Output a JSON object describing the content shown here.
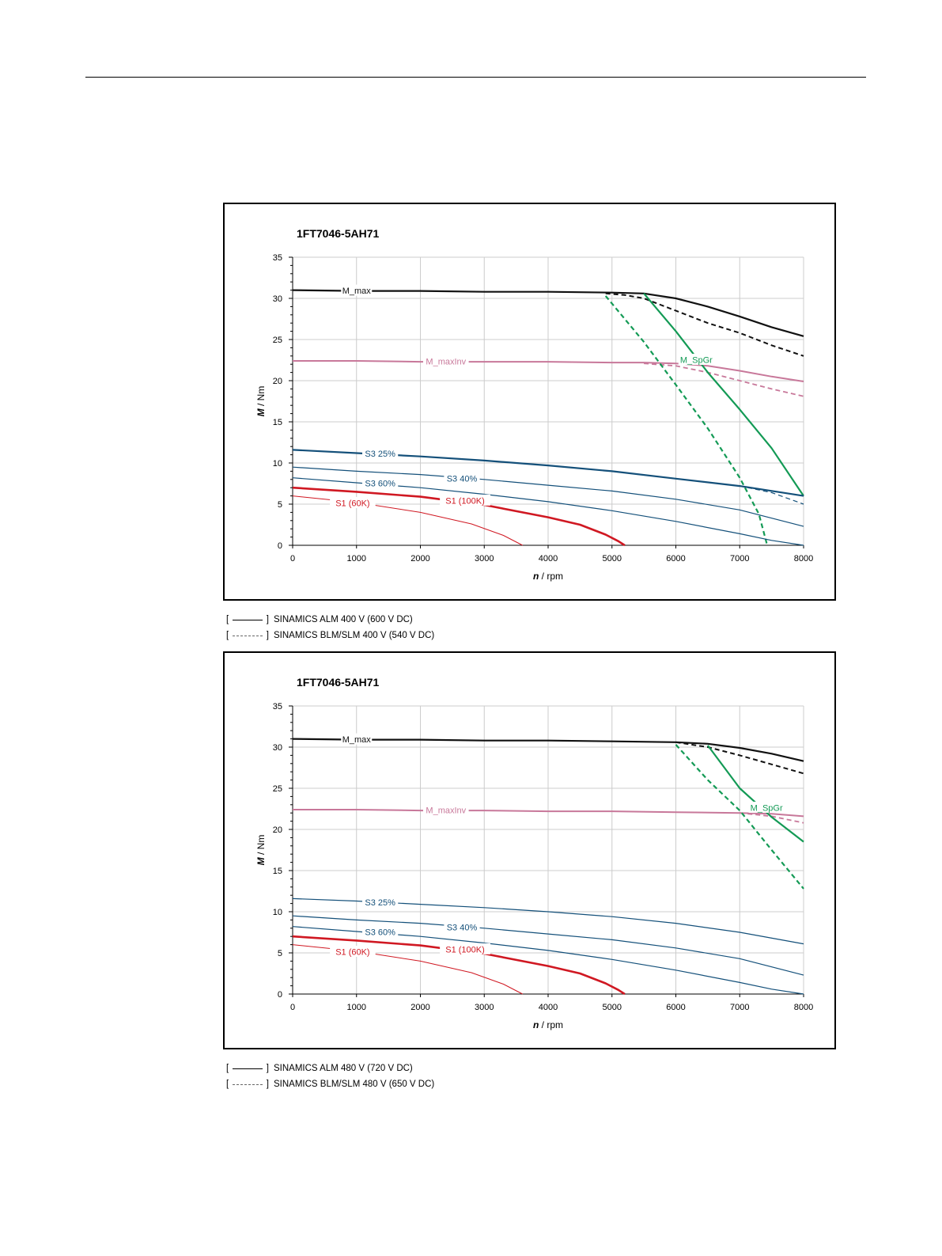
{
  "legends": [
    {
      "solid": "SINAMICS ALM 400 V (600 V DC)",
      "dashed": "SINAMICS BLM/SLM 400 V (540 V DC)"
    },
    {
      "solid": "SINAMICS ALM 480 V (720 V DC)",
      "dashed": "SINAMICS BLM/SLM 480 V (650 V DC)"
    }
  ],
  "colors": {
    "black": "#111111",
    "pink": "#c8789a",
    "green": "#139a55",
    "blue": "#14507a",
    "red": "#d01822",
    "grid": "#cccccc"
  },
  "chart_data": [
    {
      "type": "line",
      "title": "1FT7046-5AH71",
      "xlabel_italic": "n",
      "xlabel": " / rpm",
      "ylabel_italic": "M",
      "ylabel": " / Nm",
      "xlim": [
        0,
        8000
      ],
      "ylim": [
        0,
        35
      ],
      "xticks": [
        0,
        1000,
        2000,
        3000,
        4000,
        5000,
        6000,
        7000,
        8000
      ],
      "yticks": [
        0,
        5,
        10,
        15,
        20,
        25,
        30,
        35
      ],
      "grid": true,
      "series": [
        {
          "name": "M_max",
          "color": "black",
          "dash": false,
          "width": 2.2,
          "x": [
            0,
            1000,
            2000,
            3000,
            4000,
            5000,
            5500,
            6000,
            6500,
            7000,
            7500,
            8000
          ],
          "y": [
            31.0,
            30.9,
            30.9,
            30.8,
            30.8,
            30.7,
            30.6,
            30.0,
            29.0,
            27.8,
            26.5,
            25.4
          ]
        },
        {
          "color": "black",
          "dash": true,
          "width": 2.0,
          "x": [
            4900,
            5200,
            5500,
            6000,
            6500,
            7000,
            7500,
            8000
          ],
          "y": [
            30.6,
            30.4,
            30.0,
            28.5,
            27.0,
            25.8,
            24.3,
            23.0
          ]
        },
        {
          "name": "M_maxInv",
          "color": "pink",
          "dash": false,
          "width": 2.0,
          "x": [
            0,
            1000,
            2000,
            3000,
            4000,
            5000,
            5500,
            6000,
            6500,
            7000,
            7500,
            8000
          ],
          "y": [
            22.4,
            22.4,
            22.3,
            22.3,
            22.3,
            22.2,
            22.2,
            22.1,
            21.8,
            21.2,
            20.5,
            19.9
          ]
        },
        {
          "color": "pink",
          "dash": true,
          "width": 1.8,
          "x": [
            5500,
            6000,
            6500,
            7000,
            7500,
            8000
          ],
          "y": [
            22.1,
            21.8,
            21.0,
            20.0,
            19.0,
            18.1
          ]
        },
        {
          "name": "M_SpGr",
          "color": "green",
          "dash": false,
          "width": 2.2,
          "x": [
            5500,
            6000,
            6500,
            7000,
            7500,
            8000
          ],
          "y": [
            30.6,
            26.0,
            21.0,
            16.5,
            11.8,
            6.0
          ]
        },
        {
          "color": "green",
          "dash": true,
          "width": 2.2,
          "x": [
            4900,
            5500,
            6000,
            6500,
            7000,
            7300,
            7430
          ],
          "y": [
            30.3,
            24.7,
            19.5,
            14.2,
            8.2,
            3.8,
            0.0
          ]
        },
        {
          "name": "S3 25%",
          "color": "blue",
          "dash": false,
          "width": 2.2,
          "x": [
            0,
            1000,
            2000,
            3000,
            4000,
            5000,
            6000,
            7000,
            8000
          ],
          "y": [
            11.6,
            11.2,
            10.8,
            10.3,
            9.7,
            9.0,
            8.1,
            7.2,
            6.0
          ]
        },
        {
          "color": "blue",
          "dash": true,
          "width": 1.2,
          "x": [
            7000,
            7500,
            8000
          ],
          "y": [
            7.2,
            6.4,
            5.0
          ]
        },
        {
          "name": "S3 40%",
          "color": "blue",
          "dash": false,
          "width": 1.2,
          "x": [
            0,
            1000,
            2000,
            3000,
            4000,
            5000,
            6000,
            7000,
            8000
          ],
          "y": [
            9.5,
            9.0,
            8.6,
            8.0,
            7.3,
            6.6,
            5.6,
            4.3,
            2.3
          ]
        },
        {
          "name": "S3 60%",
          "color": "blue",
          "dash": false,
          "width": 1.2,
          "x": [
            0,
            1000,
            2000,
            3000,
            4000,
            5000,
            6000,
            7000,
            7500,
            8000
          ],
          "y": [
            8.2,
            7.6,
            7.0,
            6.2,
            5.3,
            4.2,
            2.9,
            1.4,
            0.6,
            0.0
          ]
        },
        {
          "name": "S1 (100K)",
          "color": "red",
          "dash": false,
          "width": 2.6,
          "x": [
            0,
            1000,
            2000,
            3000,
            4000,
            4500,
            4900,
            5100,
            5200
          ],
          "y": [
            7.0,
            6.5,
            5.9,
            4.9,
            3.4,
            2.5,
            1.3,
            0.5,
            0.0
          ]
        },
        {
          "name": "S1 (60K)",
          "color": "red",
          "dash": false,
          "width": 1.0,
          "x": [
            0,
            1000,
            2000,
            2800,
            3300,
            3600
          ],
          "y": [
            6.0,
            5.2,
            4.0,
            2.6,
            1.2,
            0.0
          ]
        }
      ],
      "annotations": [
        {
          "text": "M_max",
          "x": 1000,
          "y": 30.9,
          "color": "black"
        },
        {
          "text": "M_maxInv",
          "x": 2400,
          "y": 22.3,
          "color": "pink"
        },
        {
          "text": "M_SpGr",
          "x": 6320,
          "y": 22.5,
          "color": "green"
        },
        {
          "text": "S3 25%",
          "x": 1370,
          "y": 11.1,
          "color": "blue"
        },
        {
          "text": "S3 40%",
          "x": 2650,
          "y": 8.1,
          "color": "blue"
        },
        {
          "text": "S3 60%",
          "x": 1370,
          "y": 7.5,
          "color": "blue"
        },
        {
          "text": "S1 (60K)",
          "x": 940,
          "y": 5.1,
          "color": "red"
        },
        {
          "text": "S1 (100K)",
          "x": 2700,
          "y": 5.4,
          "color": "red"
        }
      ]
    },
    {
      "type": "line",
      "title": "1FT7046-5AH71",
      "xlabel_italic": "n",
      "xlabel": " / rpm",
      "ylabel_italic": "M",
      "ylabel": " / Nm",
      "xlim": [
        0,
        8000
      ],
      "ylim": [
        0,
        35
      ],
      "xticks": [
        0,
        1000,
        2000,
        3000,
        4000,
        5000,
        6000,
        7000,
        8000
      ],
      "yticks": [
        0,
        5,
        10,
        15,
        20,
        25,
        30,
        35
      ],
      "grid": true,
      "series": [
        {
          "name": "M_max",
          "color": "black",
          "dash": false,
          "width": 2.2,
          "x": [
            0,
            1000,
            2000,
            3000,
            4000,
            5000,
            6000,
            6500,
            7000,
            7500,
            8000
          ],
          "y": [
            31.0,
            30.9,
            30.9,
            30.8,
            30.8,
            30.7,
            30.6,
            30.4,
            29.9,
            29.2,
            28.3
          ]
        },
        {
          "color": "black",
          "dash": true,
          "width": 2.0,
          "x": [
            6000,
            6500,
            7000,
            7500,
            8000
          ],
          "y": [
            30.6,
            30.0,
            29.0,
            27.9,
            26.8
          ]
        },
        {
          "name": "M_maxInv",
          "color": "pink",
          "dash": false,
          "width": 2.0,
          "x": [
            0,
            1000,
            2000,
            3000,
            4000,
            5000,
            6000,
            7000,
            7500,
            8000
          ],
          "y": [
            22.4,
            22.4,
            22.3,
            22.3,
            22.2,
            22.2,
            22.1,
            22.0,
            21.9,
            21.6
          ]
        },
        {
          "color": "pink",
          "dash": true,
          "width": 1.8,
          "x": [
            7000,
            7500,
            8000
          ],
          "y": [
            22.0,
            21.6,
            20.8
          ]
        },
        {
          "name": "M_SpGr",
          "color": "green",
          "dash": false,
          "width": 2.2,
          "x": [
            6500,
            7000,
            7500,
            8000
          ],
          "y": [
            30.2,
            25.0,
            21.5,
            18.5
          ]
        },
        {
          "color": "green",
          "dash": true,
          "width": 2.2,
          "x": [
            6000,
            6500,
            7000,
            7500,
            8000
          ],
          "y": [
            30.3,
            26.0,
            22.3,
            17.5,
            12.8
          ]
        },
        {
          "name": "S3 25%",
          "color": "blue",
          "dash": false,
          "width": 1.2,
          "x": [
            0,
            1000,
            2000,
            3000,
            4000,
            5000,
            6000,
            7000,
            8000
          ],
          "y": [
            11.6,
            11.3,
            10.9,
            10.5,
            10.0,
            9.4,
            8.6,
            7.5,
            6.1
          ]
        },
        {
          "name": "S3 40%",
          "color": "blue",
          "dash": false,
          "width": 1.2,
          "x": [
            0,
            1000,
            2000,
            3000,
            4000,
            5000,
            6000,
            7000,
            8000
          ],
          "y": [
            9.5,
            9.0,
            8.6,
            8.0,
            7.3,
            6.6,
            5.6,
            4.3,
            2.3
          ]
        },
        {
          "name": "S3 60%",
          "color": "blue",
          "dash": false,
          "width": 1.2,
          "x": [
            0,
            1000,
            2000,
            3000,
            4000,
            5000,
            6000,
            7000,
            7500,
            8000
          ],
          "y": [
            8.2,
            7.6,
            7.0,
            6.2,
            5.3,
            4.2,
            2.9,
            1.4,
            0.6,
            0.0
          ]
        },
        {
          "name": "S1 (100K)",
          "color": "red",
          "dash": false,
          "width": 2.6,
          "x": [
            0,
            1000,
            2000,
            3000,
            4000,
            4500,
            4900,
            5100,
            5200
          ],
          "y": [
            7.0,
            6.5,
            5.9,
            4.9,
            3.4,
            2.5,
            1.3,
            0.5,
            0.0
          ]
        },
        {
          "name": "S1 (60K)",
          "color": "red",
          "dash": false,
          "width": 1.0,
          "x": [
            0,
            1000,
            2000,
            2800,
            3300,
            3600
          ],
          "y": [
            6.0,
            5.2,
            4.0,
            2.6,
            1.2,
            0.0
          ]
        }
      ],
      "annotations": [
        {
          "text": "M_max",
          "x": 1000,
          "y": 30.9,
          "color": "black"
        },
        {
          "text": "M_maxInv",
          "x": 2400,
          "y": 22.3,
          "color": "pink"
        },
        {
          "text": "M_SpGr",
          "x": 7420,
          "y": 22.6,
          "color": "green"
        },
        {
          "text": "S3 25%",
          "x": 1370,
          "y": 11.1,
          "color": "blue"
        },
        {
          "text": "S3 40%",
          "x": 2650,
          "y": 8.1,
          "color": "blue"
        },
        {
          "text": "S3 60%",
          "x": 1370,
          "y": 7.5,
          "color": "blue"
        },
        {
          "text": "S1 (60K)",
          "x": 940,
          "y": 5.1,
          "color": "red"
        },
        {
          "text": "S1 (100K)",
          "x": 2700,
          "y": 5.4,
          "color": "red"
        }
      ]
    }
  ]
}
